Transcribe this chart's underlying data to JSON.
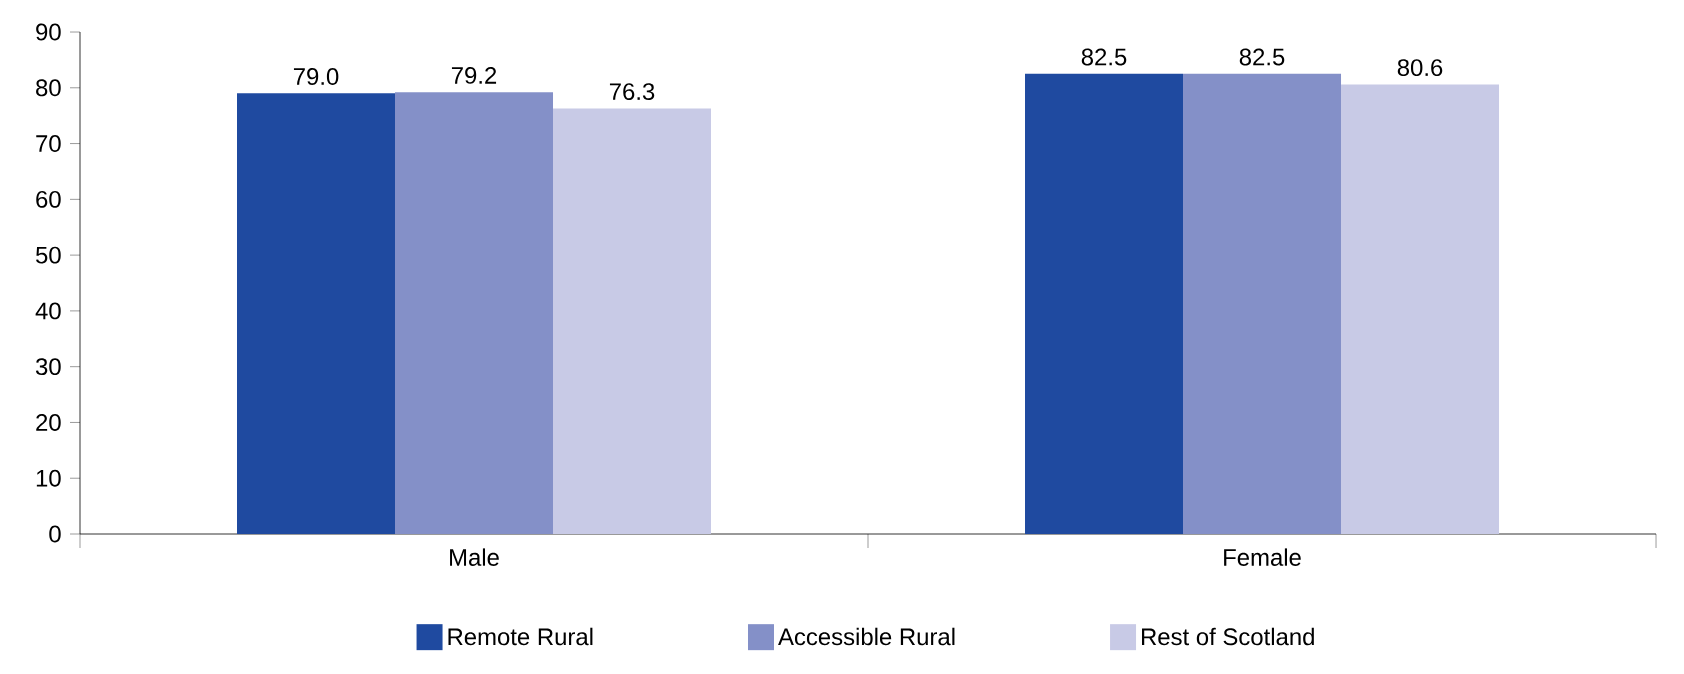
{
  "chart_data": {
    "type": "bar",
    "categories": [
      "Male",
      "Female"
    ],
    "series": [
      {
        "name": "Remote Rural",
        "color": "#1f4aa0",
        "values": [
          79.0,
          82.5
        ],
        "value_labels": [
          "79.0",
          "82.5"
        ]
      },
      {
        "name": "Accessible Rural",
        "color": "#8490c8",
        "values": [
          79.2,
          82.5
        ],
        "value_labels": [
          "79.2",
          "82.5"
        ]
      },
      {
        "name": "Rest of Scotland",
        "color": "#c8cae6",
        "values": [
          76.3,
          80.6
        ],
        "value_labels": [
          "76.3",
          "80.6"
        ]
      }
    ],
    "ylim": [
      0,
      90
    ],
    "yticks": [
      0,
      10,
      20,
      30,
      40,
      50,
      60,
      70,
      80,
      90
    ],
    "legend": "bottom"
  }
}
